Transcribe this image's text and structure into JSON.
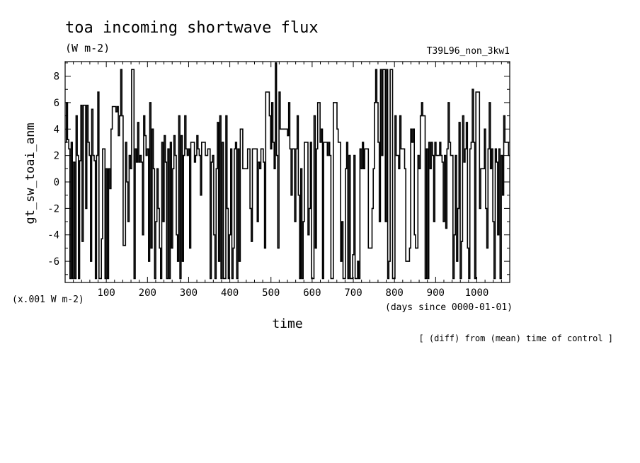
{
  "chart_data": {
    "type": "line",
    "title": "toa incoming shortwave flux",
    "units_label": "(W m-2)",
    "run_label": "T39L96_non_3kw1",
    "ylabel": "gt_sw_toai_anm",
    "xlabel": "time",
    "x_units_label": "(days since 0000-01-01)",
    "y_scale_label": "(x.001 W m-2)",
    "footnote": "[ (diff) from (mean) time of control ]",
    "xlim": [
      0,
      1080
    ],
    "ylim": [
      -7.6,
      9.1
    ],
    "x_ticks": [
      100,
      200,
      300,
      400,
      500,
      600,
      700,
      800,
      900,
      1000
    ],
    "x_tick_labels": [
      "100",
      "200",
      "300",
      "400",
      "500",
      "600",
      "700",
      "800",
      "900",
      "1000"
    ],
    "y_ticks": [
      -6,
      -4,
      -2,
      0,
      2,
      4,
      6,
      8
    ],
    "y_tick_labels": [
      "-6",
      "-4",
      "-2",
      "0",
      "2",
      "4",
      "6",
      "8"
    ],
    "step": true,
    "series": [
      {
        "values": [
          3.0,
          6.0,
          3.2,
          2.5,
          -7.3,
          3.0,
          -7.3,
          1.5,
          -7.3,
          5.0,
          2.0,
          -7.3,
          1.6,
          5.8,
          -4.5,
          5.8,
          5.8,
          -2.0,
          5.8,
          3.0,
          2.0,
          -6.0,
          5.5,
          2.0,
          1.6,
          -7.3,
          2.0,
          6.8,
          -7.3,
          -7.3,
          -4.3,
          2.5,
          2.5,
          -7.3,
          1.0,
          -7.3,
          1.0,
          -0.5,
          4.0,
          5.7,
          5.7,
          5.7,
          5.3,
          5.7,
          3.5,
          5.0,
          8.5,
          5.0,
          -4.8,
          -4.8,
          3.0,
          0.0,
          -3.0,
          2.0,
          1.0,
          8.5,
          8.5,
          -7.3,
          2.5,
          1.5,
          4.5,
          1.5,
          2.0,
          1.5,
          -4.0,
          5.0,
          3.5,
          2.0,
          2.5,
          -6.0,
          6.0,
          -5.0,
          4.0,
          1.0,
          -7.3,
          -3.0,
          1.0,
          -2.0,
          -5.0,
          -7.3,
          3.0,
          -3.0,
          3.5,
          1.5,
          -7.3,
          2.5,
          -7.3,
          3.0,
          -5.0,
          1.0,
          3.5,
          2.0,
          -4.0,
          -6.0,
          5.0,
          -7.3,
          3.5,
          -6.0,
          2.0,
          5.0,
          2.5,
          2.0,
          2.5,
          -5.0,
          3.0,
          3.0,
          3.0,
          1.5,
          2.0,
          3.5,
          2.5,
          2.0,
          -1.0,
          3.0,
          3.0,
          3.0,
          2.0,
          2.0,
          2.5,
          2.5,
          -7.3,
          1.5,
          2.0,
          -4.0,
          -7.3,
          1.0,
          4.5,
          -6.0,
          5.0,
          -7.3,
          3.0,
          -7.3,
          -7.3,
          5.0,
          -2.0,
          -7.3,
          -4.0,
          2.5,
          -7.3,
          -5.0,
          2.5,
          3.0,
          -7.3,
          2.5,
          -6.0,
          4.0,
          4.0,
          1.0,
          1.0,
          1.0,
          1.0,
          2.5,
          2.5,
          -2.0,
          -4.5,
          2.5,
          2.5,
          2.5,
          2.5,
          -3.0,
          1.5,
          1.0,
          2.5,
          2.5,
          1.5,
          -5.0,
          6.8,
          6.8,
          6.8,
          5.0,
          2.5,
          6.0,
          3.0,
          1.0,
          9.0,
          2.0,
          -5.0,
          6.8,
          4.0,
          4.0,
          4.0,
          4.0,
          4.0,
          4.0,
          3.5,
          6.0,
          2.5,
          -1.0,
          2.5,
          2.5,
          -3.0,
          2.5,
          5.0,
          -1.0,
          -7.3,
          1.0,
          -7.3,
          -3.0,
          3.0,
          3.0,
          3.0,
          -4.0,
          -2.0,
          3.0,
          -7.3,
          -7.3,
          5.0,
          -5.0,
          2.5,
          6.0,
          6.0,
          3.0,
          4.0,
          -7.3,
          3.0,
          3.0,
          3.0,
          2.0,
          3.0,
          2.0,
          -7.3,
          -7.3,
          6.0,
          6.0,
          6.0,
          4.0,
          3.0,
          3.0,
          -6.0,
          -3.0,
          -7.3,
          -7.3,
          1.0,
          3.0,
          -7.3,
          2.0,
          -7.3,
          -7.3,
          -5.5,
          2.0,
          -7.3,
          -7.3,
          -6.0,
          -7.3,
          2.5,
          1.0,
          3.0,
          1.0,
          2.5,
          2.5,
          2.5,
          -5.0,
          -5.0,
          -5.0,
          -2.0,
          1.0,
          6.0,
          8.5,
          6.0,
          3.0,
          -3.0,
          8.5,
          2.0,
          8.5,
          8.5,
          -3.0,
          8.5,
          -7.3,
          -6.0,
          8.5,
          8.5,
          -7.3,
          -7.3,
          5.0,
          2.0,
          2.0,
          1.0,
          5.0,
          2.5,
          2.5,
          2.5,
          1.0,
          -6.0,
          -6.0,
          -6.0,
          -5.0,
          4.0,
          3.0,
          4.0,
          -4.0,
          -5.0,
          -5.0,
          2.0,
          1.0,
          5.0,
          6.0,
          5.0,
          5.0,
          -7.3,
          2.5,
          -7.3,
          3.0,
          1.0,
          3.0,
          2.0,
          -3.0,
          3.0,
          2.0,
          2.0,
          2.0,
          3.0,
          2.0,
          1.5,
          -3.0,
          2.0,
          -3.5,
          2.5,
          6.0,
          3.0,
          2.0,
          2.0,
          -7.3,
          -4.0,
          2.0,
          -6.0,
          -2.0,
          4.5,
          -7.3,
          -4.5,
          5.0,
          1.5,
          2.5,
          4.5,
          -5.0,
          -7.3,
          2.5,
          3.0,
          7.0,
          3.0,
          -7.3,
          6.8,
          6.8,
          6.8,
          -2.0,
          1.0,
          1.0,
          1.0,
          4.0,
          -2.0,
          -5.0,
          2.5,
          6.0,
          1.0,
          2.5,
          -3.0,
          -7.3,
          2.5,
          1.5,
          -4.0,
          2.5,
          -7.3,
          2.0,
          -1.0,
          5.0,
          3.0,
          3.0,
          3.0,
          2.0
        ]
      }
    ]
  }
}
